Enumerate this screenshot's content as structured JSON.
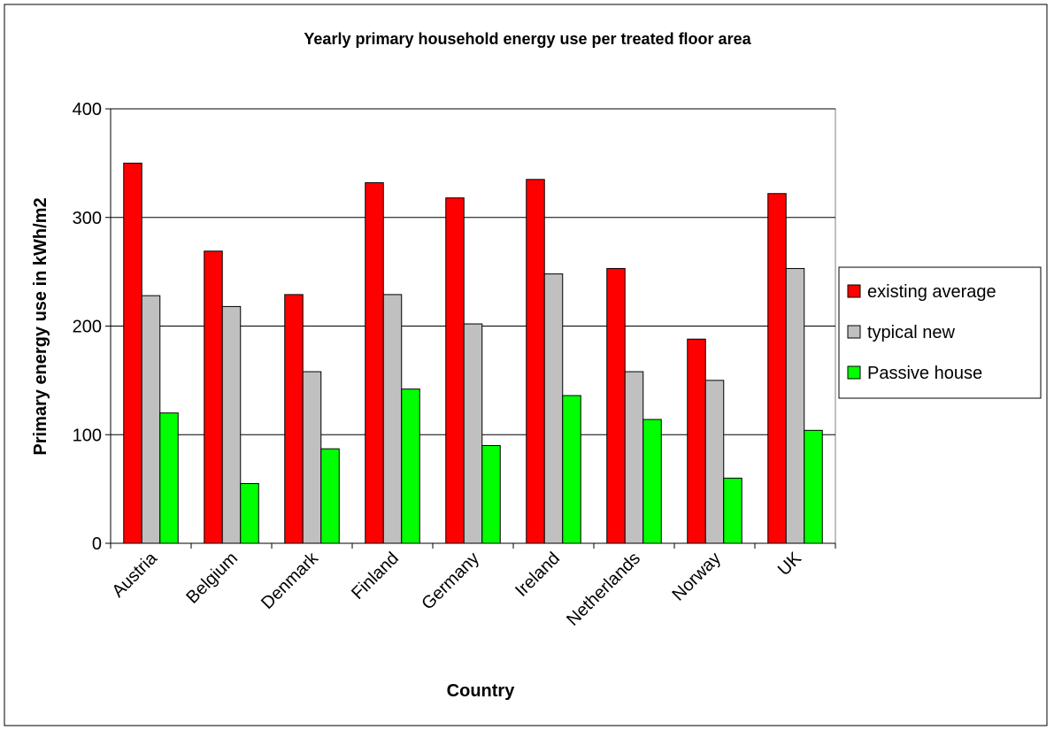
{
  "chart_data": {
    "type": "bar",
    "title": "Yearly primary household energy use per treated floor area",
    "x_label": "Country",
    "y_label": "Primary energy use in kWh/m2",
    "categories": [
      "Austria",
      "Belgium",
      "Denmark",
      "Finland",
      "Germany",
      "Ireland",
      "Netherlands",
      "Norway",
      "UK"
    ],
    "series": [
      {
        "name": "existing average",
        "color": "#ff0000",
        "values": [
          350,
          269,
          229,
          332,
          318,
          335,
          253,
          188,
          322
        ]
      },
      {
        "name": "typical new",
        "color": "#c0c0c0",
        "values": [
          228,
          218,
          158,
          229,
          202,
          248,
          158,
          150,
          253
        ]
      },
      {
        "name": "Passive house",
        "color": "#00ff00",
        "values": [
          120,
          55,
          87,
          142,
          90,
          136,
          114,
          60,
          104
        ]
      }
    ],
    "ylim": [
      0,
      400
    ],
    "yticks": [
      0,
      100,
      200,
      300,
      400
    ],
    "grid": true,
    "legend": "right"
  }
}
